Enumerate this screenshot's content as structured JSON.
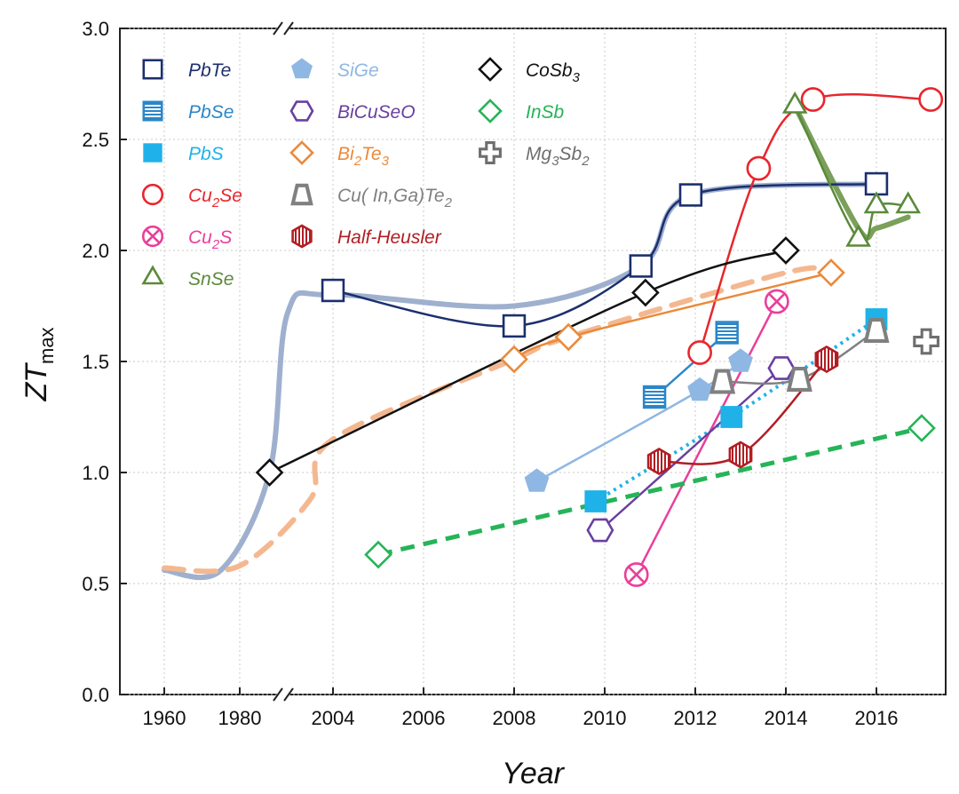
{
  "chart_data": {
    "type": "line",
    "xlabel": "Year",
    "ylabel_main": "ZT",
    "ylabel_sub": "max",
    "ylim": [
      0,
      3.0
    ],
    "y_ticks": [
      "0.0",
      "0.5",
      "1.0",
      "1.5",
      "2.0",
      "2.5",
      "3.0"
    ],
    "x_ticks": [
      "1960",
      "1980",
      "2004",
      "2006",
      "2008",
      "2010",
      "2012",
      "2014",
      "2016"
    ],
    "x_axis_note": "broken axis: 1960–1980, then 2002–2017",
    "grid": true,
    "legend_placement": "top-left",
    "series": [
      {
        "name": "PbTe",
        "color": "#1b2f6e",
        "marker": "square-open",
        "points": [
          [
            2004,
            1.82
          ],
          [
            2008,
            1.66
          ],
          [
            2010.8,
            1.93
          ],
          [
            2011.9,
            2.25
          ],
          [
            2016,
            2.3
          ]
        ]
      },
      {
        "name": "PbSe",
        "color": "#2a86c8",
        "marker": "square-striped",
        "points": [
          [
            2011.1,
            1.34
          ],
          [
            2012.7,
            1.63
          ]
        ]
      },
      {
        "name": "PbS",
        "color": "#1fb2e8",
        "marker": "square-filled",
        "points": [
          [
            2009.8,
            0.87
          ],
          [
            2012.8,
            1.25
          ],
          [
            2016,
            1.69
          ]
        ]
      },
      {
        "name": "Cu2Se",
        "label_main": "Cu",
        "label_sub": "2",
        "label_tail": "Se",
        "color": "#e8262d",
        "marker": "circle-open",
        "points": [
          [
            2012.1,
            1.54
          ],
          [
            2013.4,
            2.37
          ],
          [
            2014.6,
            2.68
          ],
          [
            2017.2,
            2.68
          ]
        ]
      },
      {
        "name": "Cu2S",
        "label_main": "Cu",
        "label_sub": "2",
        "label_tail": "S",
        "color": "#ea3f9a",
        "marker": "circle-x",
        "points": [
          [
            2010.7,
            0.54
          ],
          [
            2013.8,
            1.77
          ]
        ]
      },
      {
        "name": "SnSe",
        "color": "#5a8a3a",
        "marker": "triangle-open",
        "points": [
          [
            2014.2,
            2.65
          ],
          [
            2015.6,
            2.05
          ],
          [
            2016,
            2.2
          ],
          [
            2016.7,
            2.2
          ]
        ]
      },
      {
        "name": "SiGe",
        "color": "#8fb7e3",
        "marker": "pentagon-filled",
        "points": [
          [
            2008.5,
            0.96
          ],
          [
            2012.1,
            1.37
          ],
          [
            2013,
            1.5
          ]
        ]
      },
      {
        "name": "BiCuSeO",
        "color": "#6a3fa0",
        "marker": "hexagon-open",
        "points": [
          [
            2009.9,
            0.74
          ],
          [
            2013.9,
            1.47
          ]
        ]
      },
      {
        "name": "Bi2Te3",
        "label_main": "Bi",
        "label_sub": "2",
        "label_tail": "Te",
        "label_sub2": "3",
        "color": "#ea8a3a",
        "marker": "diamond-open",
        "points": [
          [
            2008,
            1.51
          ],
          [
            2009.2,
            1.61
          ],
          [
            2015,
            1.9
          ]
        ]
      },
      {
        "name": "Cu(In,Ga)Te2",
        "label_main": "Cu( In,Ga)Te",
        "label_sub": "2",
        "color": "#808080",
        "marker": "trapezoid-open",
        "points": [
          [
            2012.6,
            1.41
          ],
          [
            2014.3,
            1.42
          ],
          [
            2016,
            1.64
          ]
        ]
      },
      {
        "name": "Half-Heusler",
        "color": "#b01e23",
        "marker": "hexagon-striped",
        "points": [
          [
            2011.2,
            1.05
          ],
          [
            2013,
            1.08
          ],
          [
            2014.9,
            1.51
          ]
        ]
      },
      {
        "name": "CoSb3",
        "label_main": "CoSb",
        "label_sub": "3",
        "color": "#111111",
        "marker": "diamond-open",
        "points": [
          [
            2002.6,
            1.0
          ],
          [
            2010.9,
            1.81
          ],
          [
            2014,
            2.0
          ]
        ]
      },
      {
        "name": "InSb",
        "color": "#25b457",
        "marker": "diamond-open",
        "points": [
          [
            2005,
            0.63
          ],
          [
            2017,
            1.2
          ]
        ]
      },
      {
        "name": "Mg3Sb2",
        "label_main": "Mg",
        "label_sub": "3",
        "label_tail": "Sb",
        "label_sub2": "2",
        "color": "#6e6e6e",
        "marker": "cross-open",
        "points": [
          [
            2017.1,
            1.59
          ]
        ]
      }
    ],
    "trend_lines": [
      {
        "color": "#9fb0cf",
        "dashed": false,
        "points": [
          [
            "1960",
            0.56
          ],
          [
            1975,
            0.56
          ],
          [
            2002.6,
            1.0
          ],
          [
            2003,
            1.72
          ],
          [
            2004,
            1.8
          ],
          [
            2008,
            1.75
          ],
          [
            2010.8,
            1.93
          ],
          [
            2011.9,
            2.25
          ],
          [
            2016,
            2.3
          ]
        ]
      },
      {
        "color": "#f4b890",
        "dashed": true,
        "points": [
          [
            "1960",
            0.57
          ],
          [
            1980,
            0.58
          ],
          [
            2003.5,
            0.88
          ],
          [
            2004,
            1.15
          ],
          [
            2008,
            1.51
          ],
          [
            2009.2,
            1.61
          ],
          [
            2014,
            1.9
          ],
          [
            2015,
            1.9
          ]
        ]
      },
      {
        "color": "#7aa05a",
        "dashed": false,
        "points": [
          [
            2014.2,
            2.65
          ],
          [
            2015.6,
            2.1
          ],
          [
            2016,
            2.1
          ],
          [
            2016.7,
            2.15
          ]
        ]
      }
    ]
  }
}
